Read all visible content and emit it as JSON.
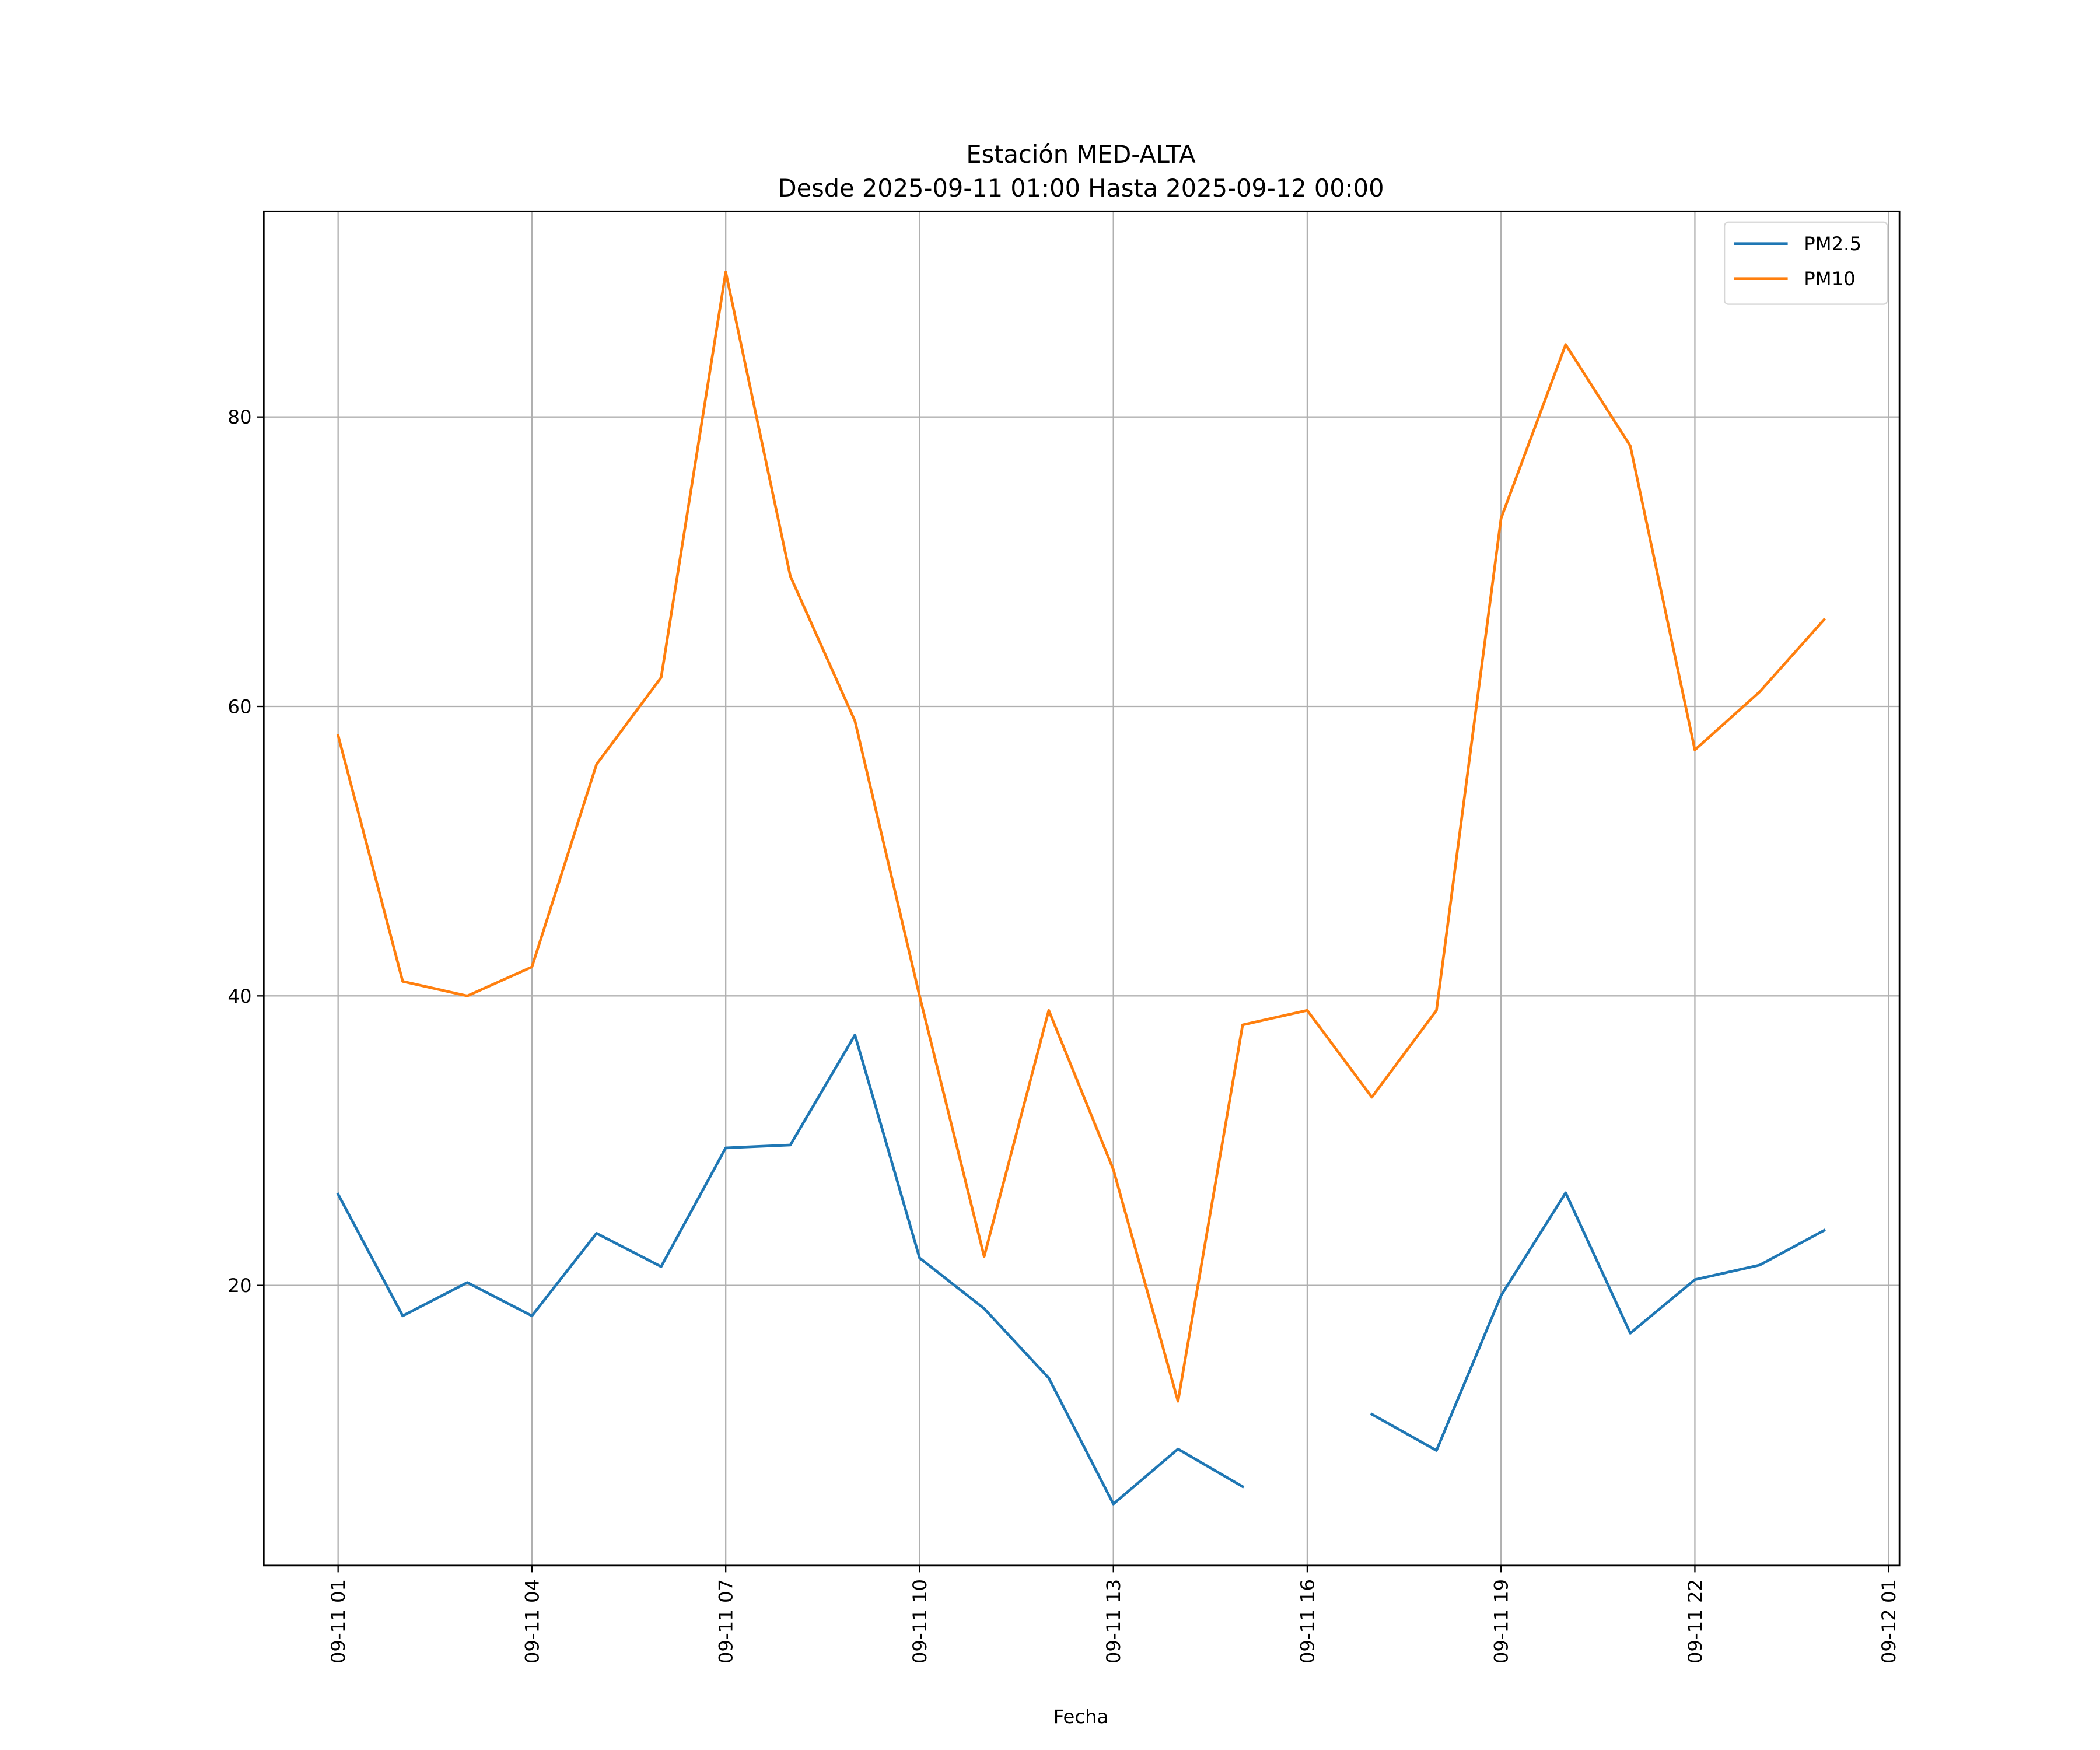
{
  "chart_data": {
    "type": "line",
    "title": "Estación MED-ALTA",
    "subtitle": "Desde 2025-09-11 01:00 Hasta 2025-09-12 00:00",
    "xlabel": "Fecha",
    "ylabel": "",
    "x": [
      "2025-09-11 01:00",
      "2025-09-11 02:00",
      "2025-09-11 03:00",
      "2025-09-11 04:00",
      "2025-09-11 05:00",
      "2025-09-11 06:00",
      "2025-09-11 07:00",
      "2025-09-11 08:00",
      "2025-09-11 09:00",
      "2025-09-11 10:00",
      "2025-09-11 11:00",
      "2025-09-11 12:00",
      "2025-09-11 13:00",
      "2025-09-11 14:00",
      "2025-09-11 15:00",
      "2025-09-11 16:00",
      "2025-09-11 17:00",
      "2025-09-11 18:00",
      "2025-09-11 19:00",
      "2025-09-11 20:00",
      "2025-09-11 21:00",
      "2025-09-11 22:00",
      "2025-09-11 23:00",
      "2025-09-12 00:00"
    ],
    "series": [
      {
        "name": "PM2.5",
        "color": "#1f77b4",
        "values": [
          26.3,
          17.9,
          20.2,
          17.9,
          23.6,
          21.3,
          29.5,
          29.7,
          37.3,
          21.9,
          18.4,
          13.6,
          4.9,
          8.7,
          6.1,
          null,
          11.1,
          8.6,
          19.3,
          26.4,
          16.7,
          20.4,
          21.4,
          23.8
        ]
      },
      {
        "name": "PM10",
        "color": "#ff7f0e",
        "values": [
          58,
          41,
          40,
          42,
          56,
          62,
          90,
          69,
          59,
          40,
          22,
          39,
          28,
          12,
          38,
          39,
          33,
          39,
          73,
          85,
          78,
          57,
          61,
          66
        ]
      }
    ],
    "xlim": [
      "2025-09-10 23:51",
      "2025-09-12 01:10"
    ],
    "ylim": [
      0.65,
      94.2
    ],
    "xticks": [
      {
        "at": "2025-09-11 01:00",
        "label": "09-11 01"
      },
      {
        "at": "2025-09-11 04:00",
        "label": "09-11 04"
      },
      {
        "at": "2025-09-11 07:00",
        "label": "09-11 07"
      },
      {
        "at": "2025-09-11 10:00",
        "label": "09-11 10"
      },
      {
        "at": "2025-09-11 13:00",
        "label": "09-11 13"
      },
      {
        "at": "2025-09-11 16:00",
        "label": "09-11 16"
      },
      {
        "at": "2025-09-11 19:00",
        "label": "09-11 19"
      },
      {
        "at": "2025-09-11 22:00",
        "label": "09-11 22"
      },
      {
        "at": "2025-09-12 01:00",
        "label": "09-12 01"
      }
    ],
    "yticks": [
      20,
      40,
      60,
      80
    ],
    "grid": true,
    "legend": "top-right",
    "grid_color": "#b0b0b0"
  }
}
